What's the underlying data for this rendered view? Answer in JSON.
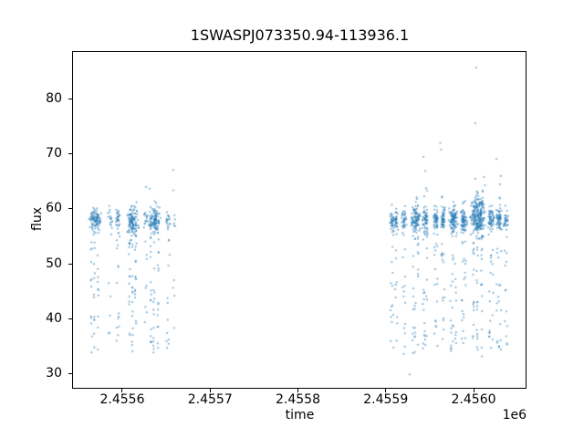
{
  "figure": {
    "background": "#ffffff"
  },
  "chart_data": {
    "type": "scatter",
    "title": "1SWASPJ073350.94-113936.1",
    "xlabel": "time",
    "ylabel": "flux",
    "offset_text": "1e6",
    "xlim": [
      2455543.9,
      2456059.2
    ],
    "ylim": [
      27.35,
      88.46
    ],
    "grid": false,
    "legend": null,
    "xticks": [
      {
        "value": 2455600,
        "label": "2.4556"
      },
      {
        "value": 2455700,
        "label": "2.4557"
      },
      {
        "value": 2455800,
        "label": "2.4558"
      },
      {
        "value": 2455900,
        "label": "2.4559"
      },
      {
        "value": 2456000,
        "label": "2.4560"
      }
    ],
    "yticks": [
      {
        "value": 30,
        "label": "30"
      },
      {
        "value": 40,
        "label": "40"
      },
      {
        "value": 50,
        "label": "50"
      },
      {
        "value": 60,
        "label": "60"
      },
      {
        "value": 70,
        "label": "70"
      },
      {
        "value": 80,
        "label": "80"
      }
    ],
    "marker": {
      "color": "#1f77b4",
      "alpha": 0.65,
      "size": 1.7
    },
    "seed": 20,
    "description": "SuperWASP light curve: two observing seasons of nightly groups; dense flux band near 58 with vertical dropout streaks down to ~33 and sparse high outliers up to ~86.",
    "nights_fields": [
      "t_center",
      "half_width",
      "n_band",
      "band_mu",
      "band_sigma",
      "n_tail",
      "tail_min",
      "n_up",
      "up_max"
    ],
    "nights": [
      [
        2455569,
        7.5,
        95,
        57.9,
        0.95,
        35,
        33.8,
        0,
        0
      ],
      [
        2455586,
        2.9,
        16,
        58.0,
        0.8,
        6,
        36.0,
        0,
        0
      ],
      [
        2455595,
        2.9,
        28,
        57.8,
        0.9,
        16,
        34.0,
        0,
        0
      ],
      [
        2455612,
        7.2,
        115,
        57.6,
        1.25,
        45,
        33.5,
        2,
        61.5
      ],
      [
        2455627,
        2.9,
        14,
        58.2,
        0.8,
        8,
        35.0,
        0,
        0
      ],
      [
        2455637,
        8.3,
        105,
        57.8,
        1.1,
        45,
        33.5,
        2,
        61.0
      ],
      [
        2455652,
        2.9,
        18,
        58.0,
        0.8,
        12,
        34.5,
        0,
        0
      ],
      [
        2455659,
        1.6,
        5,
        58.0,
        0.8,
        4,
        36.0,
        0,
        0
      ],
      [
        2455907,
        2.9,
        35,
        57.6,
        1.0,
        14,
        34.0,
        1,
        61.0
      ],
      [
        2455912,
        2.1,
        30,
        57.8,
        0.9,
        10,
        35.0,
        0,
        0
      ],
      [
        2455921,
        2.9,
        35,
        57.7,
        1.0,
        14,
        33.0,
        1,
        61.5
      ],
      [
        2455934,
        5.7,
        90,
        57.8,
        1.2,
        30,
        33.5,
        6,
        62.5
      ],
      [
        2455945,
        3.9,
        55,
        57.9,
        1.1,
        22,
        34.0,
        4,
        64.0
      ],
      [
        2455957,
        2.9,
        50,
        57.8,
        1.0,
        16,
        34.0,
        2,
        62.0
      ],
      [
        2455965,
        2.9,
        50,
        58.0,
        1.0,
        16,
        34.5,
        3,
        63.5
      ],
      [
        2455977,
        5.7,
        95,
        57.8,
        1.1,
        30,
        33.5,
        4,
        62.0
      ],
      [
        2455989,
        3.9,
        70,
        57.9,
        1.0,
        22,
        34.0,
        2,
        61.5
      ],
      [
        2456005,
        9.3,
        210,
        58.3,
        1.5,
        50,
        33.0,
        22,
        63.5
      ],
      [
        2456020,
        3.9,
        55,
        57.8,
        1.0,
        20,
        34.0,
        2,
        61.0
      ],
      [
        2456029,
        3.9,
        55,
        57.9,
        1.0,
        20,
        33.5,
        3,
        64.0
      ],
      [
        2456037,
        2.9,
        30,
        57.7,
        0.9,
        12,
        34.0,
        1,
        61.0
      ]
    ],
    "outliers": [
      [
        2455658,
        67.0
      ],
      [
        2455627,
        63.9
      ],
      [
        2455631,
        63.6
      ],
      [
        2455658,
        63.3
      ],
      [
        2455637,
        61.3
      ],
      [
        2456003,
        85.6
      ],
      [
        2456002,
        75.5
      ],
      [
        2455962,
        71.9
      ],
      [
        2455963,
        70.7
      ],
      [
        2455943,
        69.4
      ],
      [
        2456026,
        69.0
      ],
      [
        2455945,
        66.8
      ],
      [
        2456002,
        65.4
      ],
      [
        2456012,
        65.7
      ],
      [
        2456031,
        65.9
      ],
      [
        2456030,
        64.4
      ],
      [
        2456013,
        64.2
      ],
      [
        2455927,
        29.8
      ]
    ]
  }
}
